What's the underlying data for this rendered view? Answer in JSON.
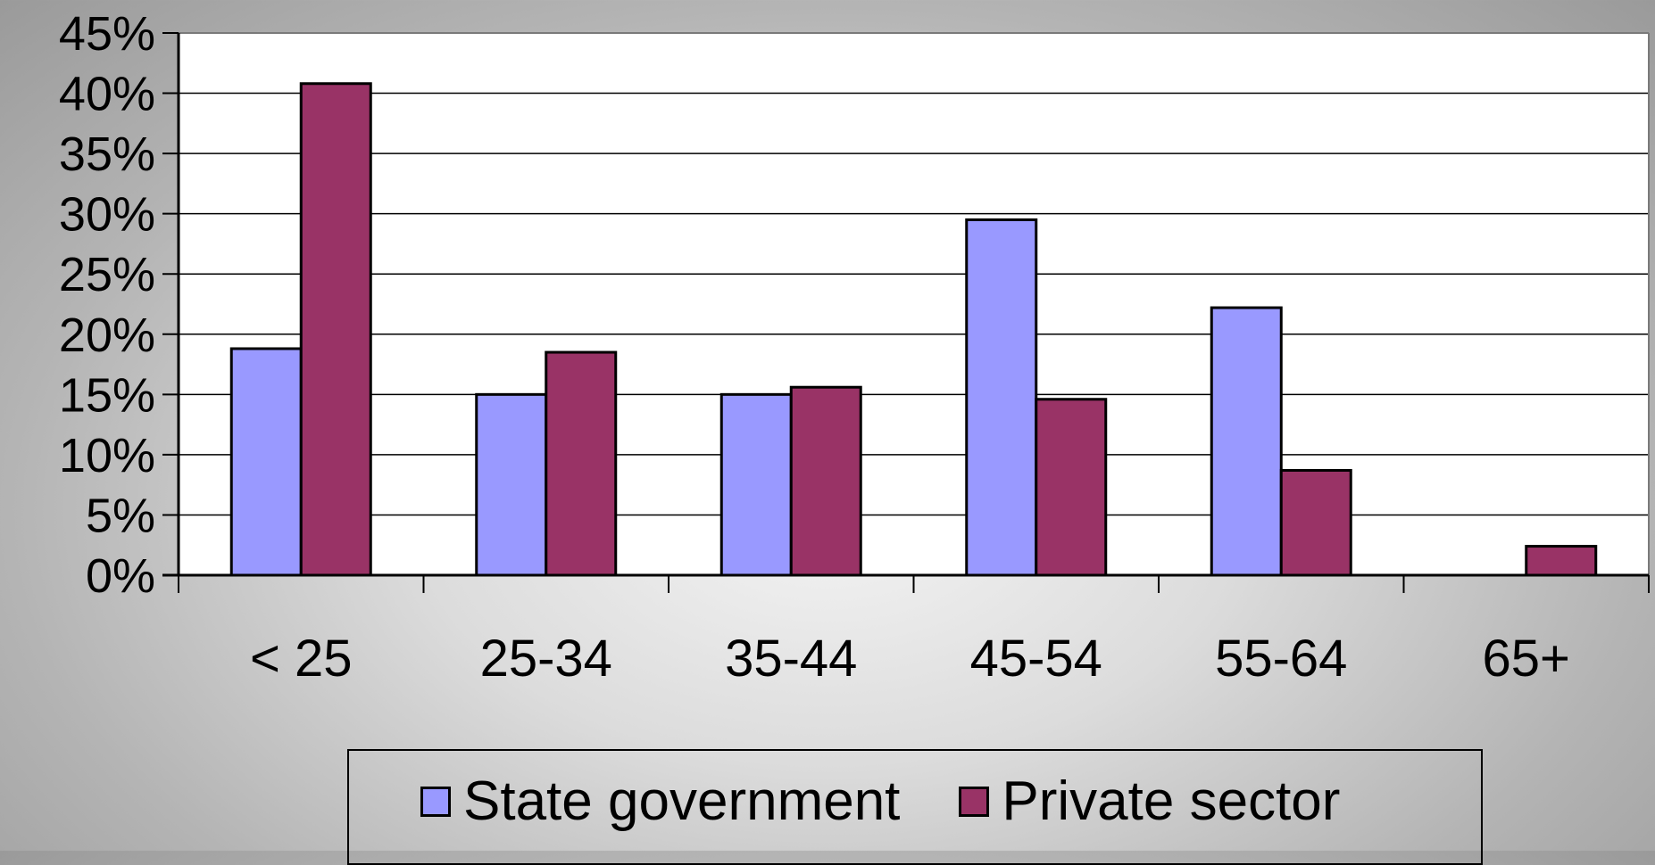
{
  "chart_data": {
    "type": "bar",
    "categories": [
      "< 25",
      "25-34",
      "35-44",
      "45-54",
      "55-64",
      "65+"
    ],
    "series": [
      {
        "name": "State government",
        "color": "#9999ff",
        "values": [
          18.8,
          15.0,
          15.0,
          29.5,
          22.2,
          0
        ]
      },
      {
        "name": "Private sector",
        "color": "#993366",
        "values": [
          40.8,
          18.5,
          15.6,
          14.6,
          8.7,
          2.4
        ]
      }
    ],
    "ylim": [
      0,
      45
    ],
    "yticks": [
      "0%",
      "5%",
      "10%",
      "15%",
      "20%",
      "25%",
      "30%",
      "35%",
      "40%",
      "45%"
    ],
    "grid": true,
    "legend_position": "bottom"
  }
}
